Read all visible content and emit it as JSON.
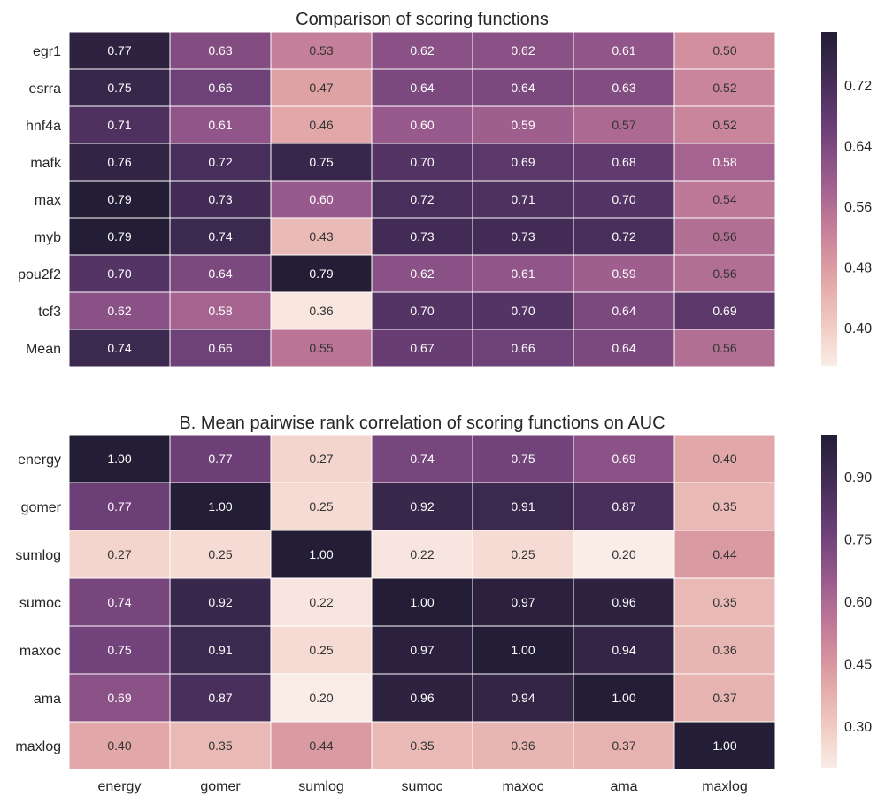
{
  "chart_data": [
    {
      "type": "heatmap",
      "title": "Comparison of scoring functions",
      "rows": [
        "egr1",
        "esrra",
        "hnf4a",
        "mafk",
        "max",
        "myb",
        "pou2f2",
        "tcf3",
        "Mean"
      ],
      "columns": [
        "energy",
        "gomer",
        "sumlog",
        "sumoc",
        "maxoc",
        "ama",
        "maxlog"
      ],
      "values": [
        [
          0.77,
          0.63,
          0.53,
          0.62,
          0.62,
          0.61,
          0.5
        ],
        [
          0.75,
          0.66,
          0.47,
          0.64,
          0.64,
          0.63,
          0.52
        ],
        [
          0.71,
          0.61,
          0.46,
          0.6,
          0.59,
          0.57,
          0.52
        ],
        [
          0.76,
          0.72,
          0.75,
          0.7,
          0.69,
          0.68,
          0.58
        ],
        [
          0.79,
          0.73,
          0.6,
          0.72,
          0.71,
          0.7,
          0.54
        ],
        [
          0.79,
          0.74,
          0.43,
          0.73,
          0.73,
          0.72,
          0.56
        ],
        [
          0.7,
          0.64,
          0.79,
          0.62,
          0.61,
          0.59,
          0.56
        ],
        [
          0.62,
          0.58,
          0.36,
          0.7,
          0.7,
          0.64,
          0.69
        ],
        [
          0.74,
          0.66,
          0.55,
          0.67,
          0.66,
          0.64,
          0.56
        ]
      ],
      "colorbar": {
        "vmin": 0.35,
        "vmax": 0.79,
        "ticks": [
          0.4,
          0.48,
          0.56,
          0.64,
          0.72
        ]
      }
    },
    {
      "type": "heatmap",
      "title": "B.  Mean pairwise rank correlation of scoring functions on AUC",
      "rows": [
        "energy",
        "gomer",
        "sumlog",
        "sumoc",
        "maxoc",
        "ama",
        "maxlog"
      ],
      "columns": [
        "energy",
        "gomer",
        "sumlog",
        "sumoc",
        "maxoc",
        "ama",
        "maxlog"
      ],
      "values": [
        [
          1.0,
          0.77,
          0.27,
          0.74,
          0.75,
          0.69,
          0.4
        ],
        [
          0.77,
          1.0,
          0.25,
          0.92,
          0.91,
          0.87,
          0.35
        ],
        [
          0.27,
          0.25,
          1.0,
          0.22,
          0.25,
          0.2,
          0.44
        ],
        [
          0.74,
          0.92,
          0.22,
          1.0,
          0.97,
          0.96,
          0.35
        ],
        [
          0.75,
          0.91,
          0.25,
          0.97,
          1.0,
          0.94,
          0.36
        ],
        [
          0.69,
          0.87,
          0.2,
          0.96,
          0.94,
          1.0,
          0.37
        ],
        [
          0.4,
          0.35,
          0.44,
          0.35,
          0.36,
          0.37,
          1.0
        ]
      ],
      "colorbar": {
        "vmin": 0.2,
        "vmax": 1.0,
        "ticks": [
          0.3,
          0.45,
          0.6,
          0.75,
          0.9
        ]
      }
    }
  ],
  "colors": {
    "colormap": [
      "#faece6",
      "#efc6bd",
      "#dd9ea2",
      "#c07a98",
      "#97598c",
      "#6b3f77",
      "#432c56",
      "#231d36"
    ]
  }
}
